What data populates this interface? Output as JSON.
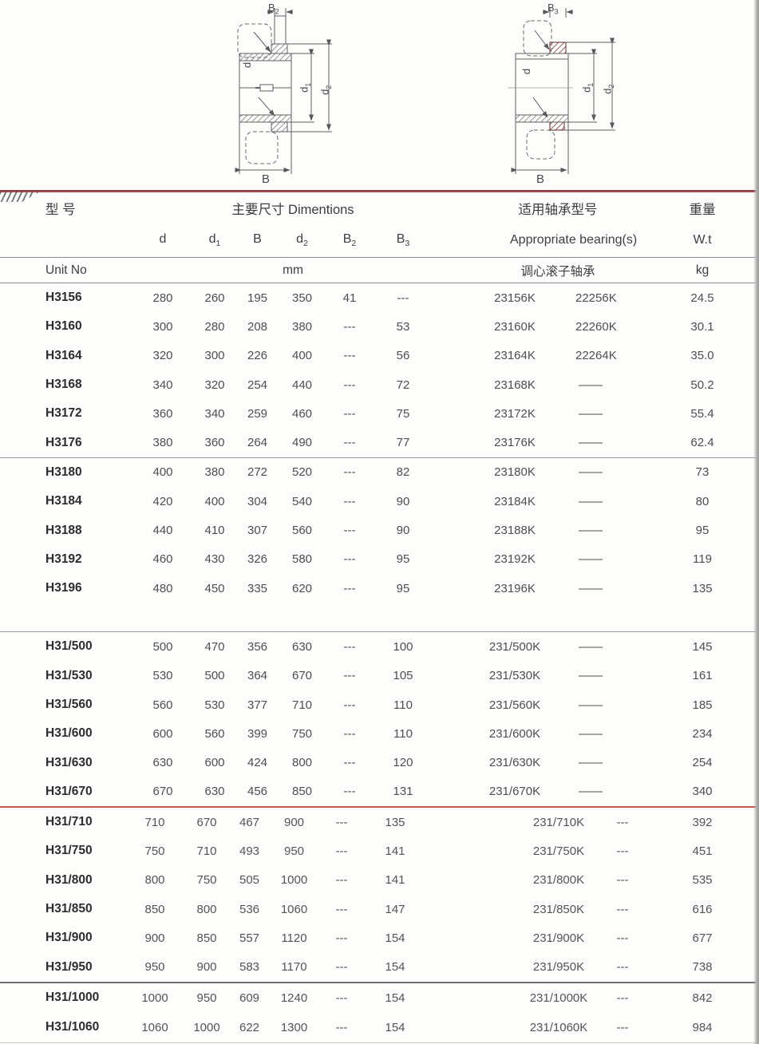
{
  "header": {
    "col_model": "型 号",
    "col_dims": "主要尺寸  Dimentions",
    "col_bearing_zh": "适用轴承型号",
    "col_weight_zh": "重量",
    "dims": [
      {
        "base": "d",
        "sub": ""
      },
      {
        "base": "d",
        "sub": "1"
      },
      {
        "base": "B",
        "sub": ""
      },
      {
        "base": "d",
        "sub": "2"
      },
      {
        "base": "B",
        "sub": "2"
      },
      {
        "base": "B",
        "sub": "3"
      }
    ],
    "col_bearing_en": "Appropriate bearing(s)",
    "col_weight_en": "W.t",
    "unit_no": "Unit No",
    "unit_mm": "mm",
    "bearing_type_zh": "调心滚子轴承",
    "unit_kg": "kg"
  },
  "sections": [
    {
      "rows": [
        [
          "H3156",
          "280",
          "260",
          "195",
          "350",
          "41",
          "---",
          "23156K",
          "22256K",
          "24.5"
        ],
        [
          "H3160",
          "300",
          "280",
          "208",
          "380",
          "---",
          "53",
          "23160K",
          "22260K",
          "30.1"
        ],
        [
          "H3164",
          "320",
          "300",
          "226",
          "400",
          "---",
          "56",
          "23164K",
          "22264K",
          "35.0"
        ],
        [
          "H3168",
          "340",
          "320",
          "254",
          "440",
          "---",
          "72",
          "23168K",
          "——",
          "50.2"
        ],
        [
          "H3172",
          "360",
          "340",
          "259",
          "460",
          "---",
          "75",
          "23172K",
          "——",
          "55.4"
        ],
        [
          "H3176",
          "380",
          "360",
          "264",
          "490",
          "---",
          "77",
          "23176K",
          "——",
          "62.4"
        ]
      ]
    },
    {
      "rows": [
        [
          "H3180",
          "400",
          "380",
          "272",
          "520",
          "---",
          "82",
          "23180K",
          "——",
          "73"
        ],
        [
          "H3184",
          "420",
          "400",
          "304",
          "540",
          "---",
          "90",
          "23184K",
          "——",
          "80"
        ],
        [
          "H3188",
          "440",
          "410",
          "307",
          "560",
          "---",
          "90",
          "23188K",
          "——",
          "95"
        ],
        [
          "H3192",
          "460",
          "430",
          "326",
          "580",
          "---",
          "95",
          "23192K",
          "——",
          "119"
        ],
        [
          "H3196",
          "480",
          "450",
          "335",
          "620",
          "---",
          "95",
          "23196K",
          "——",
          "135"
        ]
      ]
    },
    {
      "rows": [
        [
          "H31/500",
          "500",
          "470",
          "356",
          "630",
          "---",
          "100",
          "231/500K",
          "——",
          "145"
        ],
        [
          "H31/530",
          "530",
          "500",
          "364",
          "670",
          "---",
          "105",
          "231/530K",
          "——",
          "161"
        ],
        [
          "H31/560",
          "560",
          "530",
          "377",
          "710",
          "---",
          "110",
          "231/560K",
          "——",
          "185"
        ],
        [
          "H31/600",
          "600",
          "560",
          "399",
          "750",
          "---",
          "110",
          "231/600K",
          "——",
          "234"
        ],
        [
          "H31/630",
          "630",
          "600",
          "424",
          "800",
          "---",
          "120",
          "231/630K",
          "——",
          "254"
        ],
        [
          "H31/670",
          "670",
          "630",
          "456",
          "850",
          "---",
          "131",
          "231/670K",
          "——",
          "340"
        ]
      ]
    },
    {
      "rows": [
        [
          "H31/710",
          "710",
          "670",
          "467",
          "900",
          "---",
          "135",
          "231/710K",
          "---",
          "392"
        ],
        [
          "H31/750",
          "750",
          "710",
          "493",
          "950",
          "---",
          "141",
          "231/750K",
          "---",
          "451"
        ],
        [
          "H31/800",
          "800",
          "750",
          "505",
          "1000",
          "---",
          "141",
          "231/800K",
          "---",
          "535"
        ],
        [
          "H31/850",
          "850",
          "800",
          "536",
          "1060",
          "---",
          "147",
          "231/850K",
          "---",
          "616"
        ],
        [
          "H31/900",
          "900",
          "850",
          "557",
          "1120",
          "---",
          "154",
          "231/900K",
          "---",
          "677"
        ],
        [
          "H31/950",
          "950",
          "900",
          "583",
          "1170",
          "---",
          "154",
          "231/950K",
          "---",
          "738"
        ]
      ]
    },
    {
      "rows": [
        [
          "H31/1000",
          "1000",
          "950",
          "609",
          "1240",
          "---",
          "154",
          "231/1000K",
          "---",
          "842"
        ],
        [
          "H31/1060",
          "1060",
          "1000",
          "622",
          "1300",
          "---",
          "154",
          "231/1060K",
          "---",
          "984"
        ]
      ]
    }
  ],
  "drawings": {
    "left": {
      "b_top_base": "B",
      "b_top_sub": "2",
      "d": "d",
      "d1_base": "d",
      "d1_sub": "1",
      "d2_base": "d",
      "d2_sub": "2",
      "b_bottom": "B"
    },
    "right": {
      "b_top_base": "B",
      "b_top_sub": "3",
      "d": "d",
      "d1_base": "d",
      "d1_sub": "1",
      "d2_base": "d",
      "d2_sub": "2",
      "b_bottom": "B"
    }
  },
  "colors": {
    "rule_red": "#a84f56",
    "rule_gray": "#9a9a9a",
    "text": "#4e4e4e",
    "text_bold": "#2d2d2d"
  }
}
